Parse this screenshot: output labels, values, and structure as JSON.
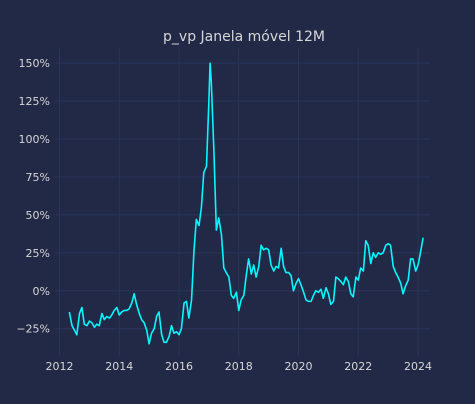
{
  "colors": {
    "background": "#212946",
    "grid": "#2A3459",
    "line": "#08F7FE",
    "text": "#D6D6D6"
  },
  "chart_data": {
    "type": "line",
    "title": "p_vp Janela móvel 12M",
    "xlabel": "",
    "ylabel": "",
    "x_axis": "date (year)",
    "xlim": [
      2011.85,
      2024.4
    ],
    "ylim": [
      -0.43,
      1.6
    ],
    "grid": true,
    "legend": "none",
    "x_ticks": [
      {
        "value": 2012,
        "label": "2012"
      },
      {
        "value": 2014,
        "label": "2014"
      },
      {
        "value": 2016,
        "label": "2016"
      },
      {
        "value": 2018,
        "label": "2018"
      },
      {
        "value": 2020,
        "label": "2020"
      },
      {
        "value": 2022,
        "label": "2022"
      },
      {
        "value": 2024,
        "label": "2024"
      }
    ],
    "y_ticks": [
      {
        "value": -0.25,
        "label": "−25%"
      },
      {
        "value": 0,
        "label": "0%"
      },
      {
        "value": 0.25,
        "label": "25%"
      },
      {
        "value": 0.5,
        "label": "50%"
      },
      {
        "value": 0.75,
        "label": "75%"
      },
      {
        "value": 1.0,
        "label": "100%"
      },
      {
        "value": 1.25,
        "label": "125%"
      },
      {
        "value": 1.5,
        "label": "150%"
      }
    ],
    "series": [
      {
        "name": "",
        "points": [
          [
            2012.33,
            -0.14
          ],
          [
            2012.42,
            -0.23
          ],
          [
            2012.5,
            -0.26
          ],
          [
            2012.58,
            -0.29
          ],
          [
            2012.67,
            -0.15
          ],
          [
            2012.75,
            -0.11
          ],
          [
            2012.83,
            -0.22
          ],
          [
            2012.92,
            -0.23
          ],
          [
            2013.0,
            -0.2
          ],
          [
            2013.08,
            -0.21
          ],
          [
            2013.17,
            -0.24
          ],
          [
            2013.25,
            -0.22
          ],
          [
            2013.33,
            -0.23
          ],
          [
            2013.42,
            -0.15
          ],
          [
            2013.5,
            -0.19
          ],
          [
            2013.58,
            -0.17
          ],
          [
            2013.67,
            -0.18
          ],
          [
            2013.75,
            -0.16
          ],
          [
            2013.83,
            -0.13
          ],
          [
            2013.92,
            -0.11
          ],
          [
            2014.0,
            -0.16
          ],
          [
            2014.08,
            -0.14
          ],
          [
            2014.17,
            -0.13
          ],
          [
            2014.25,
            -0.13
          ],
          [
            2014.33,
            -0.12
          ],
          [
            2014.42,
            -0.08
          ],
          [
            2014.5,
            -0.02
          ],
          [
            2014.58,
            -0.09
          ],
          [
            2014.67,
            -0.15
          ],
          [
            2014.75,
            -0.19
          ],
          [
            2014.83,
            -0.21
          ],
          [
            2014.92,
            -0.26
          ],
          [
            2015.0,
            -0.35
          ],
          [
            2015.08,
            -0.28
          ],
          [
            2015.17,
            -0.25
          ],
          [
            2015.25,
            -0.17
          ],
          [
            2015.33,
            -0.14
          ],
          [
            2015.42,
            -0.29
          ],
          [
            2015.5,
            -0.34
          ],
          [
            2015.58,
            -0.34
          ],
          [
            2015.67,
            -0.3
          ],
          [
            2015.75,
            -0.23
          ],
          [
            2015.83,
            -0.28
          ],
          [
            2015.92,
            -0.27
          ],
          [
            2016.0,
            -0.29
          ],
          [
            2016.08,
            -0.25
          ],
          [
            2016.17,
            -0.08
          ],
          [
            2016.25,
            -0.07
          ],
          [
            2016.33,
            -0.18
          ],
          [
            2016.42,
            -0.06
          ],
          [
            2016.5,
            0.26
          ],
          [
            2016.58,
            0.47
          ],
          [
            2016.67,
            0.43
          ],
          [
            2016.75,
            0.55
          ],
          [
            2016.83,
            0.78
          ],
          [
            2016.92,
            0.82
          ],
          [
            2017.0,
            1.25
          ],
          [
            2017.04,
            1.5
          ],
          [
            2017.08,
            1.38
          ],
          [
            2017.17,
            0.91
          ],
          [
            2017.25,
            0.4
          ],
          [
            2017.33,
            0.48
          ],
          [
            2017.42,
            0.37
          ],
          [
            2017.5,
            0.15
          ],
          [
            2017.58,
            0.12
          ],
          [
            2017.67,
            0.09
          ],
          [
            2017.75,
            -0.03
          ],
          [
            2017.83,
            -0.05
          ],
          [
            2017.92,
            -0.01
          ],
          [
            2018.0,
            -0.13
          ],
          [
            2018.08,
            -0.06
          ],
          [
            2018.17,
            -0.03
          ],
          [
            2018.25,
            0.1
          ],
          [
            2018.33,
            0.21
          ],
          [
            2018.42,
            0.11
          ],
          [
            2018.5,
            0.17
          ],
          [
            2018.58,
            0.09
          ],
          [
            2018.67,
            0.16
          ],
          [
            2018.75,
            0.3
          ],
          [
            2018.83,
            0.27
          ],
          [
            2018.92,
            0.28
          ],
          [
            2019.0,
            0.27
          ],
          [
            2019.08,
            0.17
          ],
          [
            2019.17,
            0.13
          ],
          [
            2019.25,
            0.16
          ],
          [
            2019.33,
            0.15
          ],
          [
            2019.42,
            0.28
          ],
          [
            2019.5,
            0.16
          ],
          [
            2019.58,
            0.12
          ],
          [
            2019.67,
            0.12
          ],
          [
            2019.75,
            0.1
          ],
          [
            2019.83,
            0.0
          ],
          [
            2019.92,
            0.05
          ],
          [
            2020.0,
            0.08
          ],
          [
            2020.08,
            0.04
          ],
          [
            2020.17,
            -0.01
          ],
          [
            2020.25,
            -0.06
          ],
          [
            2020.33,
            -0.07
          ],
          [
            2020.42,
            -0.07
          ],
          [
            2020.5,
            -0.03
          ],
          [
            2020.58,
            0.0
          ],
          [
            2020.67,
            -0.01
          ],
          [
            2020.75,
            0.01
          ],
          [
            2020.83,
            -0.05
          ],
          [
            2020.92,
            0.02
          ],
          [
            2021.0,
            -0.02
          ],
          [
            2021.08,
            -0.09
          ],
          [
            2021.17,
            -0.07
          ],
          [
            2021.25,
            0.09
          ],
          [
            2021.33,
            0.08
          ],
          [
            2021.42,
            0.06
          ],
          [
            2021.5,
            0.04
          ],
          [
            2021.58,
            0.09
          ],
          [
            2021.67,
            0.06
          ],
          [
            2021.75,
            -0.02
          ],
          [
            2021.83,
            -0.04
          ],
          [
            2021.92,
            0.09
          ],
          [
            2022.0,
            0.07
          ],
          [
            2022.08,
            0.15
          ],
          [
            2022.17,
            0.13
          ],
          [
            2022.25,
            0.33
          ],
          [
            2022.33,
            0.3
          ],
          [
            2022.42,
            0.18
          ],
          [
            2022.5,
            0.25
          ],
          [
            2022.58,
            0.22
          ],
          [
            2022.67,
            0.25
          ],
          [
            2022.75,
            0.24
          ],
          [
            2022.83,
            0.25
          ],
          [
            2022.92,
            0.3
          ],
          [
            2023.0,
            0.31
          ],
          [
            2023.08,
            0.3
          ],
          [
            2023.17,
            0.16
          ],
          [
            2023.25,
            0.12
          ],
          [
            2023.33,
            0.09
          ],
          [
            2023.42,
            0.05
          ],
          [
            2023.5,
            -0.02
          ],
          [
            2023.58,
            0.03
          ],
          [
            2023.67,
            0.07
          ],
          [
            2023.75,
            0.21
          ],
          [
            2023.83,
            0.21
          ],
          [
            2023.92,
            0.13
          ],
          [
            2024.0,
            0.17
          ],
          [
            2024.08,
            0.25
          ],
          [
            2024.17,
            0.35
          ]
        ]
      }
    ]
  }
}
